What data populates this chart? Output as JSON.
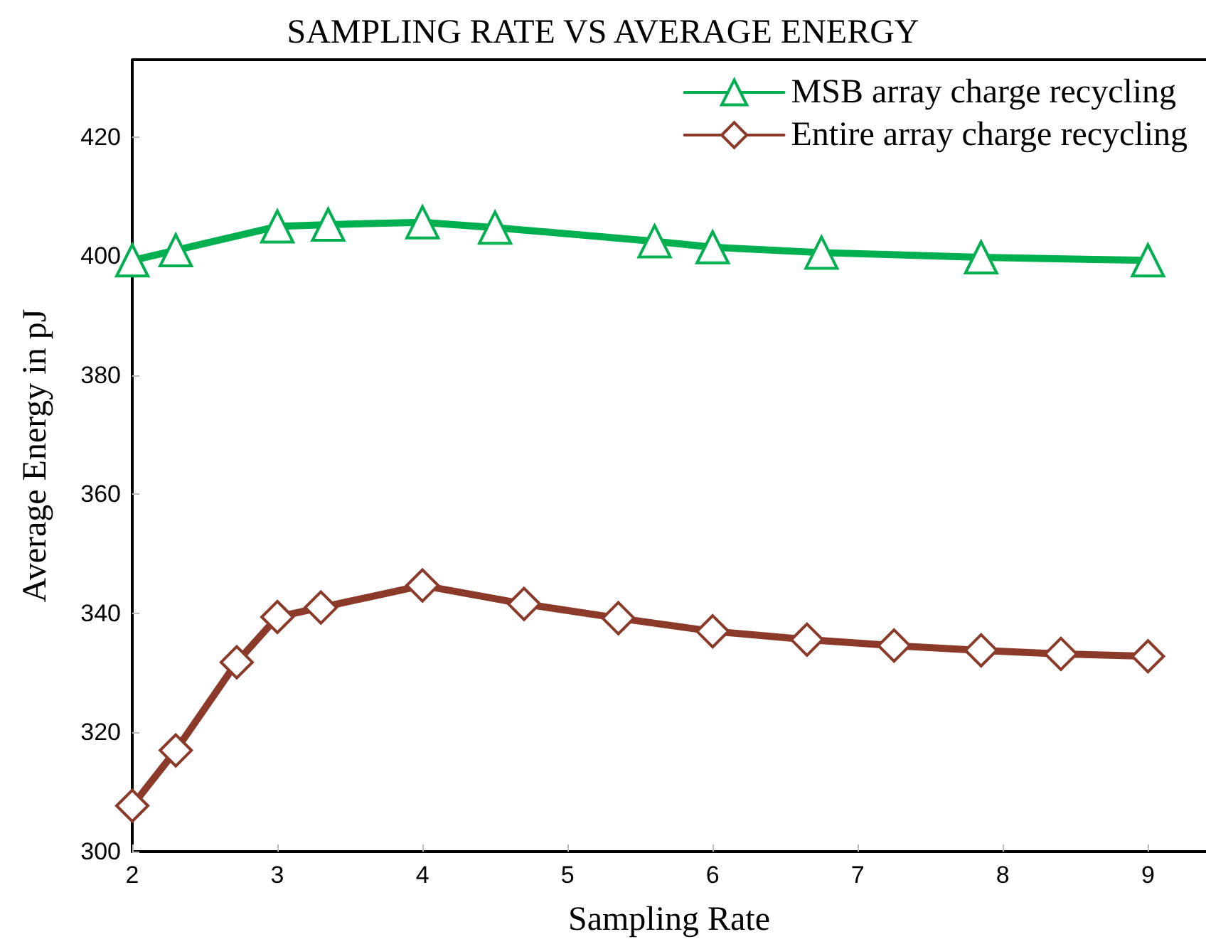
{
  "chart_data": {
    "type": "line",
    "title": "SAMPLING RATE VS AVERAGE ENERGY",
    "xlabel": "Sampling Rate",
    "ylabel": "Average Energy in pJ",
    "xlim": [
      2,
      9.4
    ],
    "xticks": [
      2,
      3,
      4,
      5,
      6,
      7,
      8,
      9
    ],
    "ylim": [
      300,
      433
    ],
    "yticks": [
      300,
      320,
      340,
      360,
      380,
      400,
      420
    ],
    "grid": false,
    "legend": "top right",
    "series": [
      {
        "name": "MSB array charge recycling",
        "color": "#00b050",
        "marker": "triangle",
        "x": [
          2.0,
          2.3,
          3.0,
          3.35,
          4.0,
          4.5,
          5.6,
          6.0,
          6.75,
          7.85,
          9.0
        ],
        "values": [
          399.3,
          401,
          405,
          405.3,
          405.7,
          404.8,
          402.5,
          401.5,
          400.6,
          399.8,
          399.3
        ]
      },
      {
        "name": "Entire array charge recycling",
        "color": "#8b3a2a",
        "marker": "diamond",
        "x": [
          2.0,
          2.3,
          2.72,
          3.0,
          3.3,
          4.0,
          4.7,
          5.35,
          6.0,
          6.65,
          7.25,
          7.85,
          8.4,
          9.0
        ],
        "values": [
          307.7,
          317,
          331.8,
          339.4,
          341,
          344.7,
          341.6,
          339.2,
          337,
          335.6,
          334.6,
          333.8,
          333.2,
          332.8
        ]
      }
    ]
  }
}
